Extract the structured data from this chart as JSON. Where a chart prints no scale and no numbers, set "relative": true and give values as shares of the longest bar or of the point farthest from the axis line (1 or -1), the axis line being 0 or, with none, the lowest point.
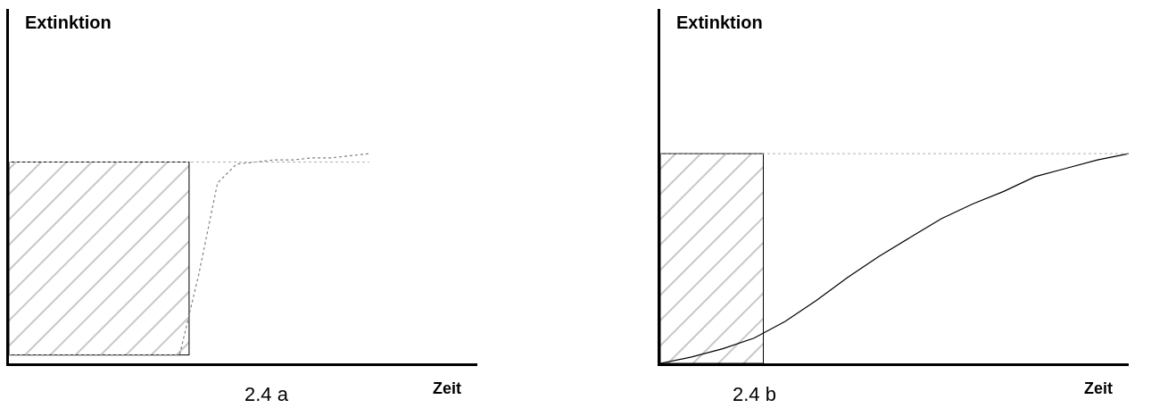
{
  "chart_data": [
    {
      "type": "line",
      "ylabel": "Extinktion",
      "xlabel": "Zeit",
      "annotations": [
        "2.4 a"
      ],
      "relative": true,
      "line_style": "dotted",
      "categories": [
        null,
        null,
        null,
        null,
        null,
        null,
        null,
        null,
        null,
        null,
        null,
        null,
        null,
        null,
        null,
        null,
        null,
        null,
        null,
        null
      ],
      "series": [
        {
          "color": "#808080",
          "values": [
            0.04,
            0.04,
            0.04,
            0.04,
            0.04,
            0.04,
            0.04,
            0.04,
            0.04,
            0.04,
            0.42,
            0.86,
            0.95,
            0.96,
            0.97,
            0.97,
            0.98,
            0.98,
            0.99,
            1.0
          ]
        }
      ],
      "ref_lines": [
        {
          "axis": "y",
          "value": 0.96,
          "line_style": "dotted",
          "color": "#b0b0b0"
        }
      ]
    },
    {
      "type": "line",
      "ylabel": "Extinktion",
      "xlabel": "Zeit",
      "annotations": [
        "2.4 b"
      ],
      "relative": true,
      "line_style": "solid",
      "categories": [
        null,
        null,
        null,
        null,
        null,
        null,
        null,
        null,
        null,
        null,
        null,
        null,
        null,
        null,
        null,
        null
      ],
      "series": [
        {
          "color": "#000000",
          "values": [
            0,
            0.03,
            0.07,
            0.12,
            0.2,
            0.3,
            0.41,
            0.51,
            0.6,
            0.69,
            0.76,
            0.82,
            0.89,
            0.93,
            0.97,
            1.0
          ]
        }
      ],
      "ref_lines": [
        {
          "axis": "y",
          "value": 1.0,
          "line_style": "dotted",
          "color": "#b0b0b0"
        }
      ]
    }
  ]
}
